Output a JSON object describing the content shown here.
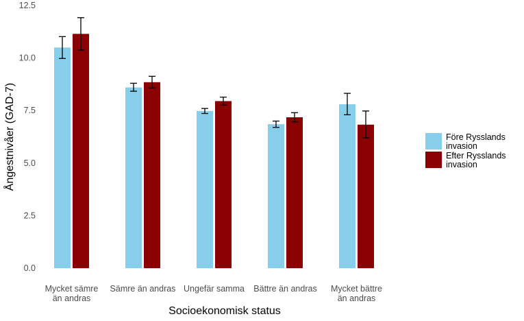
{
  "chart_data": {
    "type": "bar",
    "xlabel": "Socioekonomisk status",
    "ylabel": "Ångestnivåer (GAD-7)",
    "ylim": [
      0,
      12.5
    ],
    "yticks": [
      "0.0",
      "2.5",
      "5.0",
      "7.5",
      "10.0",
      "12.5"
    ],
    "grid": false,
    "legend_position": "right",
    "categories": [
      [
        "Mycket sämre",
        "än andras"
      ],
      [
        "Sämre än andras"
      ],
      [
        "Ungefär samma"
      ],
      [
        "Bättre än andras"
      ],
      [
        "Mycket bättre",
        "än andras"
      ]
    ],
    "series": [
      {
        "name": [
          "Före Rysslands",
          "invasion"
        ],
        "color": "#87CEEB",
        "values": [
          10.5,
          8.6,
          7.48,
          6.85,
          7.8
        ],
        "error_low": [
          9.98,
          8.42,
          7.36,
          6.7,
          7.3
        ],
        "error_high": [
          11.02,
          8.8,
          7.6,
          7.0,
          8.32
        ]
      },
      {
        "name": [
          "Efter Rysslands",
          "invasion"
        ],
        "color": "#8B0000",
        "values": [
          11.15,
          8.85,
          7.95,
          7.18,
          6.83
        ],
        "error_low": [
          10.38,
          8.58,
          7.76,
          6.96,
          6.2
        ],
        "error_high": [
          11.92,
          9.13,
          8.14,
          7.4,
          7.48
        ]
      }
    ]
  }
}
